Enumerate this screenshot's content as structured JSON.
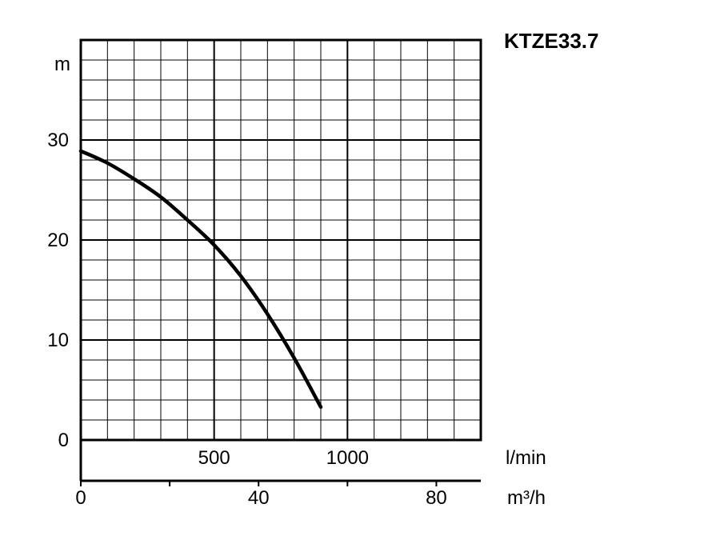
{
  "chart_data": {
    "type": "line",
    "title": "KTZE33.7",
    "ylabel": "m",
    "x_unit_primary": "l/min",
    "x_unit_secondary": "m³/h",
    "xlim": [
      0,
      1500
    ],
    "ylim": [
      0,
      40
    ],
    "grid": true,
    "y_ticks": [
      "0",
      "10",
      "20",
      "30"
    ],
    "y_tick_values": [
      0,
      10,
      20,
      30
    ],
    "x_ticks_primary": [
      "500",
      "1000"
    ],
    "x_tick_values_primary": [
      500,
      1000
    ],
    "x_ticks_secondary": [
      "0",
      "40",
      "80"
    ],
    "x_tick_values_secondary": [
      0,
      40,
      80
    ],
    "series": [
      {
        "x": [
          0,
          100,
          200,
          300,
          400,
          500,
          600,
          700,
          800,
          900
        ],
        "y": [
          28.9,
          27.7,
          26.1,
          24.3,
          22.0,
          19.5,
          16.4,
          12.6,
          8.2,
          3.3
        ]
      }
    ]
  }
}
